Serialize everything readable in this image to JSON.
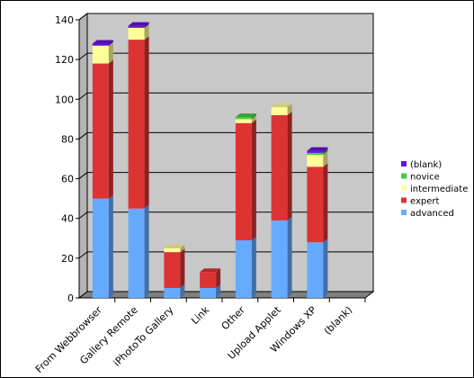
{
  "chart_data": {
    "type": "bar",
    "stacked": true,
    "three_d": true,
    "categories": [
      "From Webbrowser",
      "Gallery Remote",
      "iPhotoTo Gallery",
      "Link",
      "Other",
      "Upload Applet",
      "Windows XP",
      "(blank)"
    ],
    "series": [
      {
        "name": "advanced",
        "color": "#66aaff",
        "values": [
          50,
          45,
          5,
          5,
          29,
          39,
          28,
          0
        ]
      },
      {
        "name": "expert",
        "color": "#dd3333",
        "values": [
          68,
          85,
          18,
          8,
          59,
          53,
          38,
          0
        ]
      },
      {
        "name": "intermediate",
        "color": "#ffff99",
        "values": [
          9,
          6,
          2,
          0,
          2,
          4,
          6,
          0
        ]
      },
      {
        "name": "novice",
        "color": "#44cc44",
        "values": [
          0,
          0,
          0,
          0,
          1,
          0,
          1,
          0
        ]
      },
      {
        "name": "(blank)",
        "color": "#6611dd",
        "values": [
          1,
          1,
          0,
          0,
          0,
          0,
          1,
          0
        ]
      }
    ],
    "legend_order": [
      "(blank)",
      "novice",
      "intermediate",
      "expert",
      "advanced"
    ],
    "y_ticks": [
      "0",
      "20",
      "40",
      "60",
      "80",
      "100",
      "120",
      "140"
    ],
    "ylim": [
      0,
      140
    ],
    "grid": true,
    "legend_position": "right"
  }
}
